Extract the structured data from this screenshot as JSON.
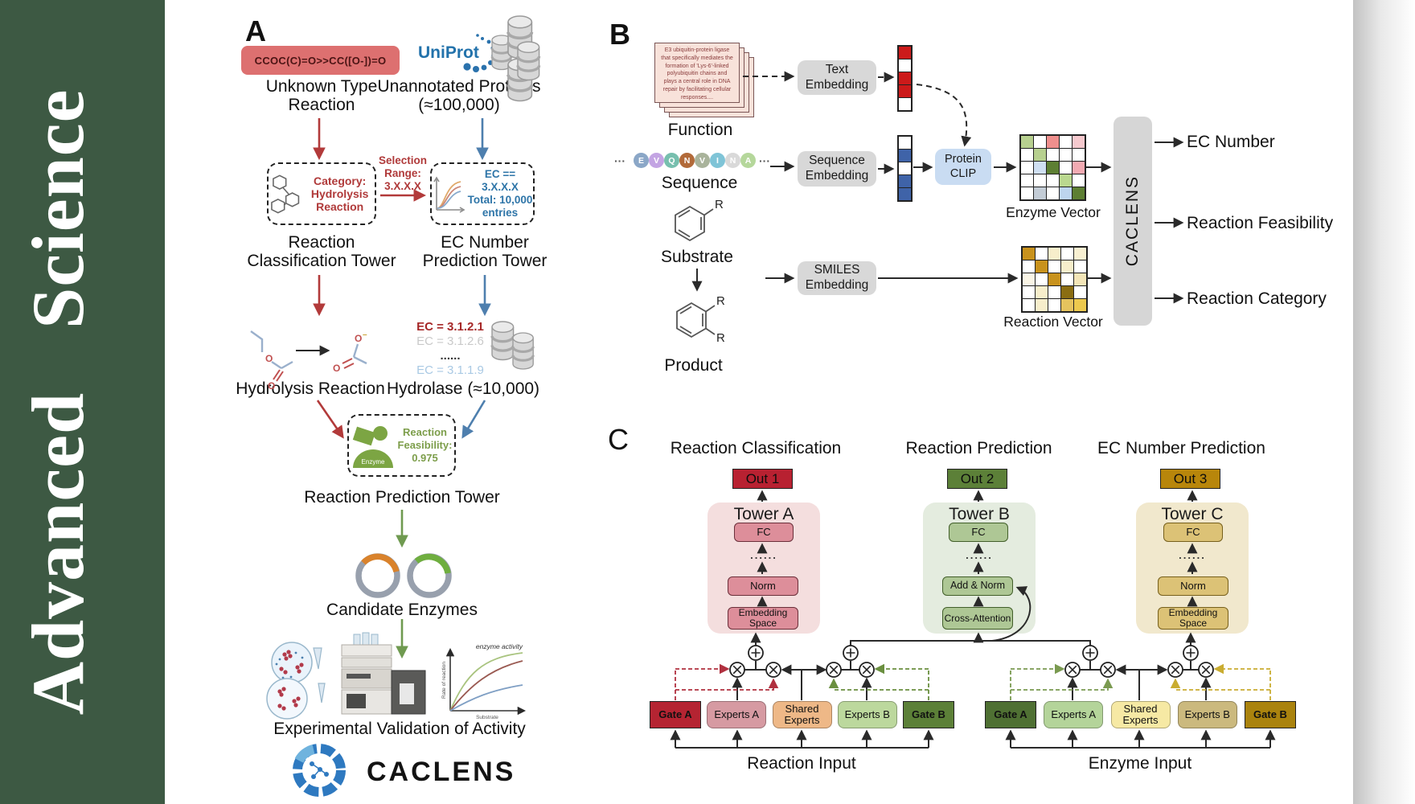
{
  "journal": {
    "name": "Advanced Science"
  },
  "panelA": {
    "label": "A",
    "smiles": "CCOC(C)=O>>CC([O-])=O",
    "uniprot": "UniProt",
    "unknown_type": "Unknown Type Reaction",
    "unannotated": "Unannotated Proteins (≈100,000)",
    "category": "Category: Hydrolysis Reaction",
    "selection": "Selection Range: 3.X.X.X",
    "ec_box_l1": "EC == 3.X.X.X",
    "ec_box_l2": "Total: 10,000 entries",
    "tower1": "Reaction Classification Tower",
    "tower2": "EC Number Prediction Tower",
    "ec_list": [
      {
        "text": "EC = 3.1.2.1",
        "color": "#a62828",
        "bold": true
      },
      {
        "text": "EC = 3.1.2.6",
        "color": "#c9c9c9"
      },
      {
        "text": "......",
        "color": "#333333",
        "bold": true
      },
      {
        "text": "EC = 3.1.1.9",
        "color": "#a9c9e4"
      }
    ],
    "hydrolysis": "Hydrolysis Reaction",
    "hydrolase": "Hydrolase (≈10,000)",
    "enzyme": "Enzyme",
    "feasibility": "Reaction Feasibility: 0.975",
    "tower3": "Reaction Prediction Tower",
    "candidates": "Candidate Enzymes",
    "validation": "Experimental Validation of Activity",
    "plot": {
      "curve": "enzyme activity",
      "y": "Rate of reaction",
      "x": "Substrate"
    },
    "wordmark": "CACLENS"
  },
  "panelB": {
    "label": "B",
    "card": "E3 ubiquitin-protein ligase that specifically mediates the formation of 'Lys-6'-linked polyubiquitin chains and plays a central role in DNA repair by facilitating cellular responses....",
    "function": "Function",
    "ellipsis": "···",
    "residues": [
      {
        "text": "E",
        "bg": "#8ba7c7"
      },
      {
        "text": "V",
        "bg": "#c3a4e3"
      },
      {
        "text": "Q",
        "bg": "#77bfae"
      },
      {
        "text": "N",
        "bg": "#b26a39"
      },
      {
        "text": "V",
        "bg": "#a9b39b"
      },
      {
        "text": "I",
        "bg": "#7fc4d7"
      },
      {
        "text": "N",
        "bg": "#d9d9d9"
      },
      {
        "text": "A",
        "bg": "#b5d79b"
      }
    ],
    "sequence": "Sequence",
    "substrate": "Substrate",
    "product": "Product",
    "r": "R",
    "text_embedding": "Text Embedding",
    "sequence_embedding": "Sequence Embedding",
    "smiles_embedding": "SMILES Embedding",
    "protein_clip": "Protein CLIP",
    "caclens": "CACLENS",
    "enzyme_vector": "Enzyme Vector",
    "reaction_vector": "Reaction Vector",
    "outputs": [
      "EC Number",
      "Reaction Feasibility",
      "Reaction Category"
    ],
    "text_vector": [
      "#cc1a1a",
      "#ffffff",
      "#cc1a1a",
      "#cc1a1a",
      "#ffffff"
    ],
    "seq_vector": [
      "#ffffff",
      "#3f63a8",
      "#ffffff",
      "#3f63a8",
      "#3f63a8"
    ],
    "enzyme_grid": [
      "#b7d08f",
      "#ffffff",
      "#ef8f8d",
      "#ffffff",
      "#f6c9ce",
      "#ffffff",
      "#b7d08f",
      "#ffffff",
      "#ffffff",
      "#ffffff",
      "#ffffff",
      "#cfdff2",
      "#5d7f33",
      "#ffffff",
      "#f2aab2",
      "#ffffff",
      "#ffffff",
      "#ffffff",
      "#bad88f",
      "#ffffff",
      "#ffffff",
      "#c3ccd6",
      "#ffffff",
      "#bdd5ee",
      "#5d7f33"
    ],
    "reaction_grid": [
      "#c8921d",
      "#ffffff",
      "#f7eecb",
      "#ffffff",
      "#f8f0d2",
      "#ffffff",
      "#c8921d",
      "#ffffff",
      "#f7eecb",
      "#ffffff",
      "#faf5e6",
      "#ffffff",
      "#c8921d",
      "#ffffff",
      "#f3e5b8",
      "#ffffff",
      "#f7eecb",
      "#ffffff",
      "#8a6d12",
      "#ffffff",
      "#ffffff",
      "#f7eecb",
      "#ffffff",
      "#e5c35e",
      "#edc94e"
    ]
  },
  "panelC": {
    "label": "C",
    "headings": [
      "Reaction Classification",
      "Reaction Prediction",
      "EC Number Prediction"
    ],
    "outs": [
      {
        "text": "Out 1",
        "bg": "#b82131"
      },
      {
        "text": "Out 2",
        "bg": "#5c8038"
      },
      {
        "text": "Out 3",
        "bg": "#b8860b"
      }
    ],
    "towerA": {
      "title": "Tower A",
      "fc": "FC",
      "dots": "......",
      "mid": "Norm",
      "bottom": "Embedding Space"
    },
    "towerB": {
      "title": "Tower B",
      "fc": "FC",
      "dots": "......",
      "mid": "Add & Norm",
      "bottom": "Cross-Attention"
    },
    "towerC": {
      "title": "Tower C",
      "fc": "FC",
      "dots": "......",
      "mid": "Norm",
      "bottom": "Embedding Space"
    },
    "moe_reaction": {
      "label": "Reaction Input",
      "boxes": [
        {
          "text": "Gate A",
          "bg": "#b52432",
          "type": "gate"
        },
        {
          "text": "Experts A",
          "bg": "#d69aa2"
        },
        {
          "text": "Shared Experts",
          "bg": "#eeb887"
        },
        {
          "text": "Experts B",
          "bg": "#bcd89d"
        },
        {
          "text": "Gate B",
          "bg": "#5c8038",
          "type": "gate"
        }
      ]
    },
    "moe_enzyme": {
      "label": "Enzyme Input",
      "boxes": [
        {
          "text": "Gate A",
          "bg": "#4f7033",
          "type": "gate"
        },
        {
          "text": "Experts A",
          "bg": "#b4d49a"
        },
        {
          "text": "Shared Experts",
          "bg": "#f6e9a4"
        },
        {
          "text": "Experts B",
          "bg": "#cbb97e"
        },
        {
          "text": "Gate B",
          "bg": "#aa830e",
          "type": "gate"
        }
      ]
    }
  }
}
